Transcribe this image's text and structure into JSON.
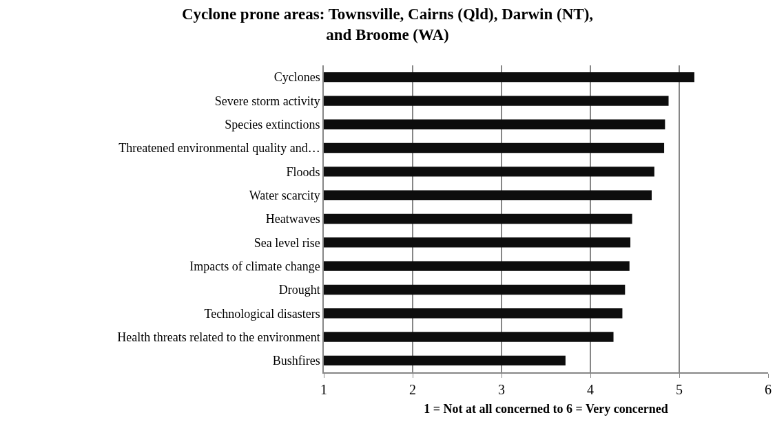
{
  "chart_data": {
    "type": "bar",
    "orientation": "horizontal",
    "title": "Cyclone prone areas: Townsville, Cairns (Qld), Darwin (NT), and Broome (WA)",
    "xlabel": "1 = Not at all concerned to 6 = Very concerned",
    "categories": [
      "Cyclones",
      "Severe storm activity",
      "Species extinctions",
      "Threatened environmental quality and…",
      "Floods",
      "Water scarcity",
      "Heatwaves",
      "Sea level rise",
      "Impacts of climate change",
      "Drought",
      "Technological disasters",
      "Health threats related to the environment",
      "Bushfires"
    ],
    "values": [
      5.17,
      4.88,
      4.84,
      4.83,
      4.72,
      4.69,
      4.47,
      4.45,
      4.44,
      4.39,
      4.36,
      4.26,
      3.72
    ],
    "color": "#0d0d0d",
    "xlim": [
      1,
      6
    ],
    "xticks": [
      1,
      2,
      3,
      4,
      5,
      6
    ],
    "grid": "x"
  }
}
